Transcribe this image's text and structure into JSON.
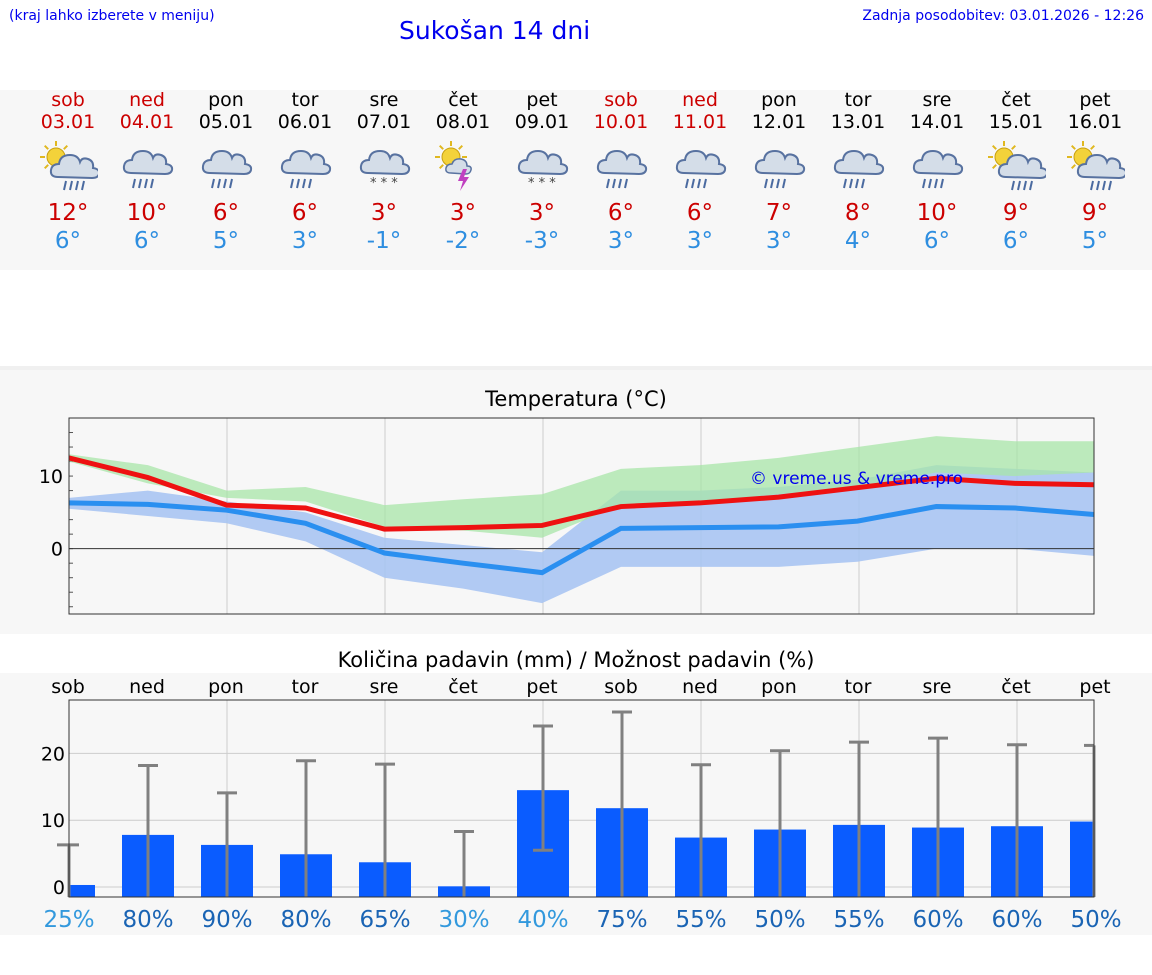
{
  "header": {
    "left_note": "(kraj lahko izberete v meniju)",
    "title": "Sukošan 14 dni",
    "last_update": "Zadnja posodobitev: 03.01.2026 - 12:26"
  },
  "days": [
    {
      "name": "sob",
      "date": "03.01",
      "weekend": true,
      "icon": "sun-cloud-rain-icon",
      "tmax": "12°",
      "tmin": "6°"
    },
    {
      "name": "ned",
      "date": "04.01",
      "weekend": true,
      "icon": "cloud-rain-icon",
      "tmax": "10°",
      "tmin": "6°"
    },
    {
      "name": "pon",
      "date": "05.01",
      "weekend": false,
      "icon": "cloud-rain-icon",
      "tmax": "6°",
      "tmin": "5°"
    },
    {
      "name": "tor",
      "date": "06.01",
      "weekend": false,
      "icon": "cloud-rain-icon",
      "tmax": "6°",
      "tmin": "3°"
    },
    {
      "name": "sre",
      "date": "07.01",
      "weekend": false,
      "icon": "cloud-snow-icon",
      "tmax": "3°",
      "tmin": "-1°"
    },
    {
      "name": "čet",
      "date": "08.01",
      "weekend": false,
      "icon": "sun-thunder-icon",
      "tmax": "3°",
      "tmin": "-2°"
    },
    {
      "name": "pet",
      "date": "09.01",
      "weekend": false,
      "icon": "cloud-snow-icon",
      "tmax": "3°",
      "tmin": "-3°"
    },
    {
      "name": "sob",
      "date": "10.01",
      "weekend": true,
      "icon": "cloud-rain-icon",
      "tmax": "6°",
      "tmin": "3°"
    },
    {
      "name": "ned",
      "date": "11.01",
      "weekend": true,
      "icon": "cloud-rain-icon",
      "tmax": "6°",
      "tmin": "3°"
    },
    {
      "name": "pon",
      "date": "12.01",
      "weekend": false,
      "icon": "cloud-rain-icon",
      "tmax": "7°",
      "tmin": "3°"
    },
    {
      "name": "tor",
      "date": "13.01",
      "weekend": false,
      "icon": "cloud-rain-icon",
      "tmax": "8°",
      "tmin": "4°"
    },
    {
      "name": "sre",
      "date": "14.01",
      "weekend": false,
      "icon": "cloud-rain-icon",
      "tmax": "10°",
      "tmin": "6°"
    },
    {
      "name": "čet",
      "date": "15.01",
      "weekend": false,
      "icon": "sun-cloud-rain-icon",
      "tmax": "9°",
      "tmin": "6°"
    },
    {
      "name": "pet",
      "date": "16.01",
      "weekend": false,
      "icon": "sun-cloud-rain-icon",
      "tmax": "9°",
      "tmin": "5°"
    }
  ],
  "colors": {
    "weekend": "#cc0000",
    "tmax": "#cc0000",
    "tmin": "#2e8ee0",
    "max_line": "#ee1111",
    "min_line": "#2a8ff0",
    "max_band": "#a8e6a8",
    "min_band": "#a9c4f2",
    "bar": "#0a5cff",
    "err": "#808080",
    "watermark": "#0000ee"
  },
  "chart_data": [
    {
      "type": "line",
      "title": "Temperatura (°C)",
      "watermark": "© vreme.us & vreme.pro",
      "x": [
        0,
        1,
        2,
        3,
        4,
        5,
        6,
        7,
        8,
        9,
        10,
        11,
        12,
        13
      ],
      "ylim": [
        -9,
        18
      ],
      "yticks": [
        0,
        10
      ],
      "grid": true,
      "series": [
        {
          "name": "max",
          "values": [
            12.5,
            9.8,
            6.0,
            5.6,
            2.7,
            2.9,
            3.2,
            5.8,
            6.3,
            7.1,
            8.4,
            9.7,
            9.0,
            8.8
          ],
          "band_low": [
            12.0,
            9.0,
            7.0,
            6.5,
            3.0,
            2.5,
            1.5,
            6.0,
            6.5,
            7.5,
            8.5,
            10.5,
            10.0,
            10.5
          ],
          "band_high": [
            13.0,
            11.5,
            8.0,
            8.5,
            6.0,
            6.8,
            7.5,
            11.0,
            11.5,
            12.5,
            14.0,
            15.5,
            14.8,
            14.8
          ]
        },
        {
          "name": "min",
          "values": [
            6.3,
            6.1,
            5.3,
            3.5,
            -0.6,
            -2.0,
            -3.3,
            2.8,
            2.9,
            3.0,
            3.8,
            5.8,
            5.6,
            4.7
          ],
          "band_low": [
            5.5,
            4.5,
            3.5,
            1.0,
            -4.0,
            -5.5,
            -7.5,
            -2.5,
            -2.5,
            -2.5,
            -1.8,
            0.0,
            0.0,
            -1.0
          ],
          "band_high": [
            7.0,
            8.0,
            6.5,
            5.0,
            1.5,
            0.5,
            -0.5,
            8.0,
            8.0,
            8.5,
            9.5,
            11.5,
            11.0,
            10.5
          ]
        }
      ]
    },
    {
      "type": "bar",
      "title": "Količina padavin (mm) / Možnost padavin (%)",
      "categories": [
        "sob",
        "ned",
        "pon",
        "tor",
        "sre",
        "čet",
        "pet",
        "sob",
        "ned",
        "pon",
        "tor",
        "sre",
        "čet",
        "pet"
      ],
      "values": [
        0.3,
        7.8,
        6.3,
        4.9,
        3.7,
        0.1,
        14.5,
        11.8,
        7.4,
        8.6,
        9.3,
        8.9,
        9.1,
        9.8
      ],
      "error_low": [
        0,
        0,
        0,
        0,
        0,
        0,
        5.5,
        0,
        0,
        0,
        0,
        0,
        0,
        0
      ],
      "error_high": [
        6.3,
        18.2,
        14.1,
        18.9,
        18.4,
        8.3,
        24.1,
        26.2,
        18.3,
        20.4,
        21.7,
        22.3,
        21.3,
        21.2
      ],
      "probability": [
        "25%",
        "80%",
        "90%",
        "80%",
        "65%",
        "30%",
        "40%",
        "75%",
        "55%",
        "50%",
        "55%",
        "60%",
        "60%",
        "50%"
      ],
      "probability_colors": [
        "#3399dd",
        "#1a64b4",
        "#1a64b4",
        "#1a64b4",
        "#1a64b4",
        "#3399dd",
        "#3399dd",
        "#1a64b4",
        "#1a64b4",
        "#1a64b4",
        "#1a64b4",
        "#1a64b4",
        "#1a64b4",
        "#1a64b4"
      ],
      "ylim": [
        -1.5,
        28
      ],
      "yticks": [
        0,
        10,
        20
      ],
      "grid": true
    }
  ]
}
